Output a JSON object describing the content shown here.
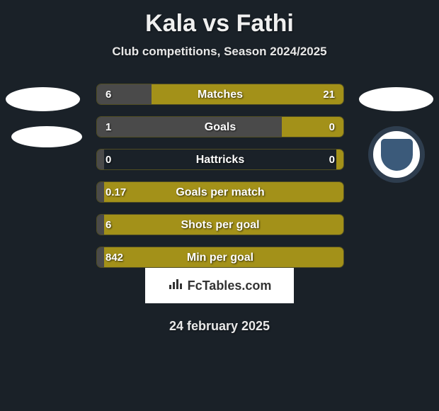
{
  "title": "Kala vs Fathi",
  "subtitle": "Club competitions, Season 2024/2025",
  "date": "24 february 2025",
  "branding": "FcTables.com",
  "colors": {
    "background": "#1a2128",
    "bar_left": "#4a4a4a",
    "bar_right": "#a39119",
    "text": "#ffffff",
    "logo_bg": "#ffffff"
  },
  "stats": [
    {
      "label": "Matches",
      "left_val": "6",
      "right_val": "21",
      "left_pct": 22,
      "right_pct": 78
    },
    {
      "label": "Goals",
      "left_val": "1",
      "right_val": "0",
      "left_pct": 75,
      "right_pct": 25
    },
    {
      "label": "Hattricks",
      "left_val": "0",
      "right_val": "0",
      "left_pct": 3,
      "right_pct": 3
    },
    {
      "label": "Goals per match",
      "left_val": "0.17",
      "right_val": "",
      "left_pct": 3,
      "right_pct": 97
    },
    {
      "label": "Shots per goal",
      "left_val": "6",
      "right_val": "",
      "left_pct": 3,
      "right_pct": 97
    },
    {
      "label": "Min per goal",
      "left_val": "842",
      "right_val": "",
      "left_pct": 3,
      "right_pct": 97
    }
  ]
}
